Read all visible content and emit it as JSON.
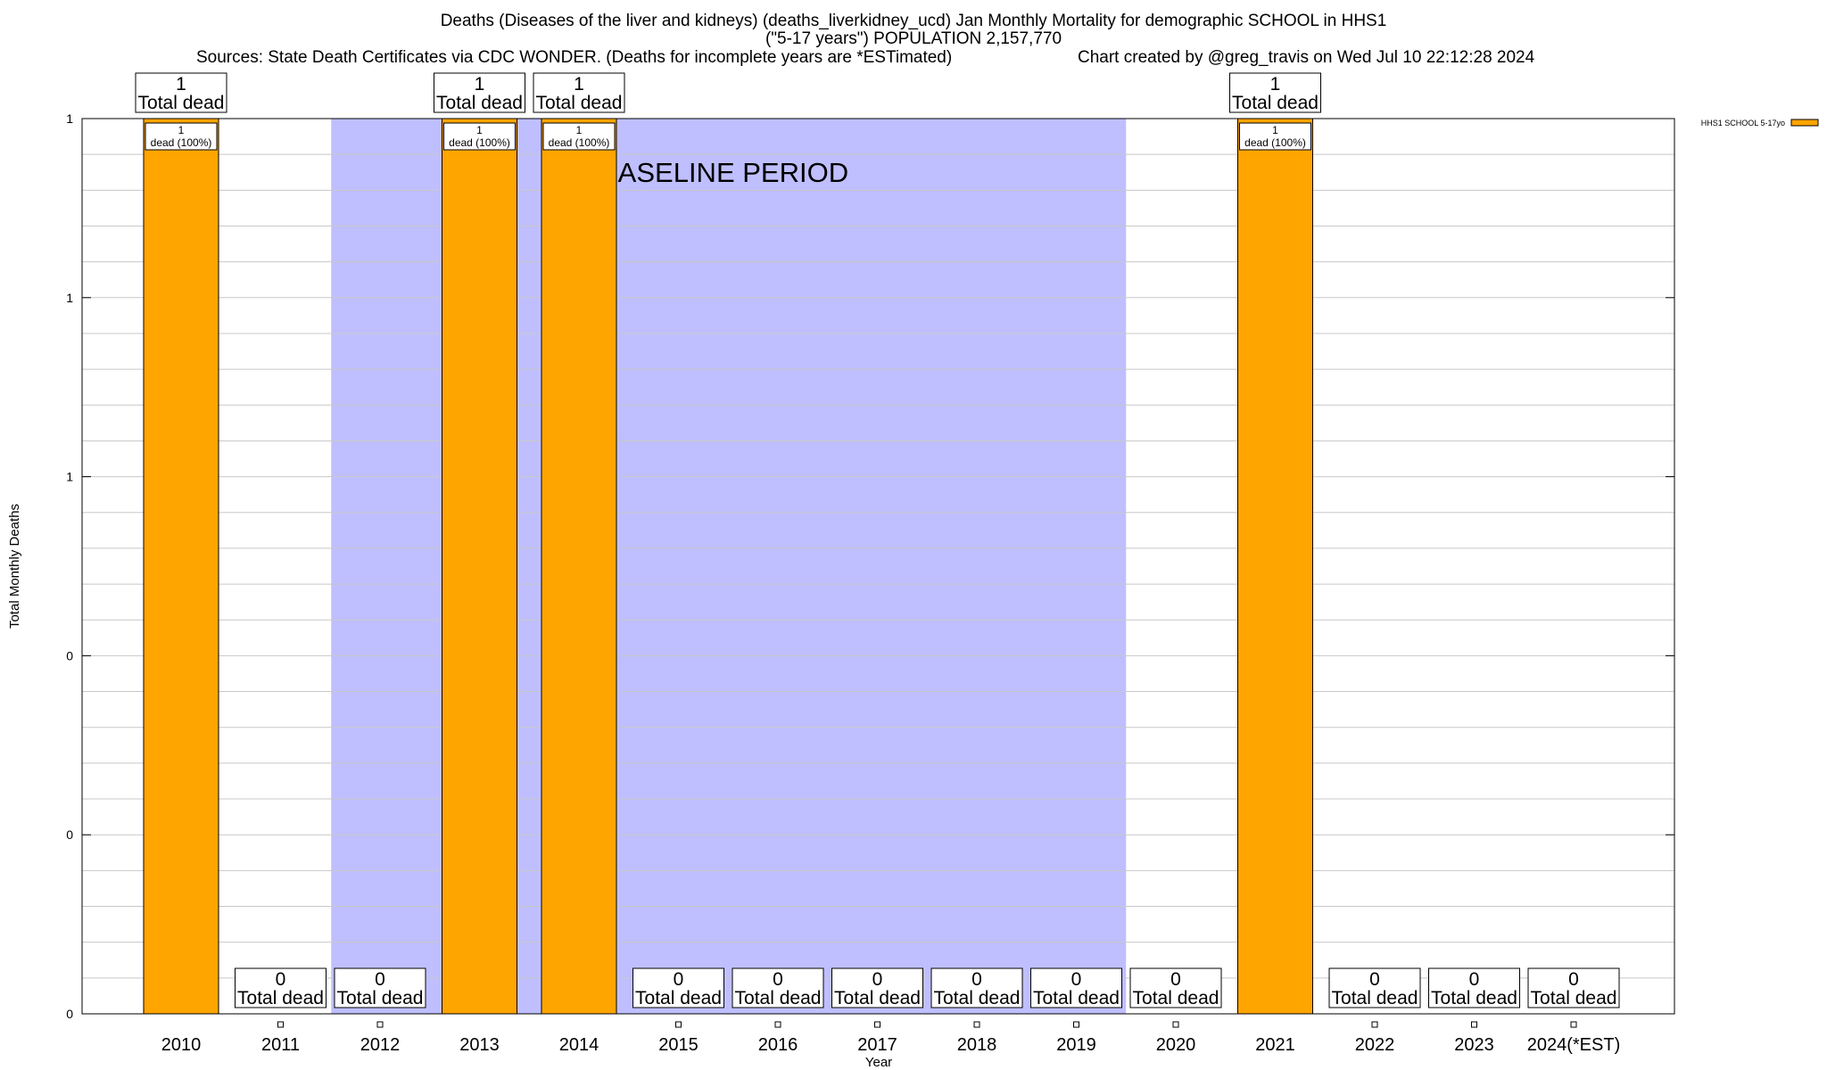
{
  "header": {
    "title_line1": "Deaths (Diseases of the liver and kidneys) (deaths_liverkidney_ucd) Jan Monthly Mortality for demographic SCHOOL in HHS1",
    "title_line2": "(\"5-17 years\") POPULATION 2,157,770",
    "sources": "Sources: State Death Certificates via CDC WONDER. (Deaths for incomplete years are *ESTimated)",
    "credit": "Chart created by @greg_travis on Wed Jul 10 22:12:28 2024"
  },
  "chart_data": {
    "type": "bar",
    "xlabel": "Year",
    "ylabel": "Total Monthly Deaths",
    "categories": [
      "2010",
      "2011",
      "2012",
      "2013",
      "2014",
      "2015",
      "2016",
      "2017",
      "2018",
      "2019",
      "2020",
      "2021",
      "2022",
      "2023",
      "2024(*EST)"
    ],
    "series": [
      {
        "name": "HHS1 SCHOOL 5-17yo",
        "color": "#ffa500",
        "values": [
          1,
          0,
          0,
          1,
          1,
          0,
          0,
          0,
          0,
          0,
          0,
          1,
          0,
          0,
          0
        ]
      }
    ],
    "total_labels": [
      "1",
      "0",
      "0",
      "1",
      "1",
      "0",
      "0",
      "0",
      "0",
      "0",
      "0",
      "1",
      "0",
      "0",
      "0"
    ],
    "total_suffix": "Total dead",
    "segment_labels": [
      "dead (100%)",
      "",
      "",
      "dead (100%)",
      "dead (100%)",
      "",
      "",
      "",
      "",
      "",
      "",
      "dead (100%)",
      "",
      "",
      ""
    ],
    "ylim": [
      0,
      1
    ],
    "yticks": [
      0,
      0.2,
      0.4,
      0.6,
      0.8,
      1
    ],
    "ytick_labels": [
      "0",
      "0",
      "0",
      "1",
      "1",
      "1"
    ],
    "grid": true,
    "baseline_period": {
      "label": "BASELINE PERIOD",
      "from": "2012",
      "to": "2019",
      "color": "#bfbfff"
    },
    "legend_position": "top-right"
  }
}
